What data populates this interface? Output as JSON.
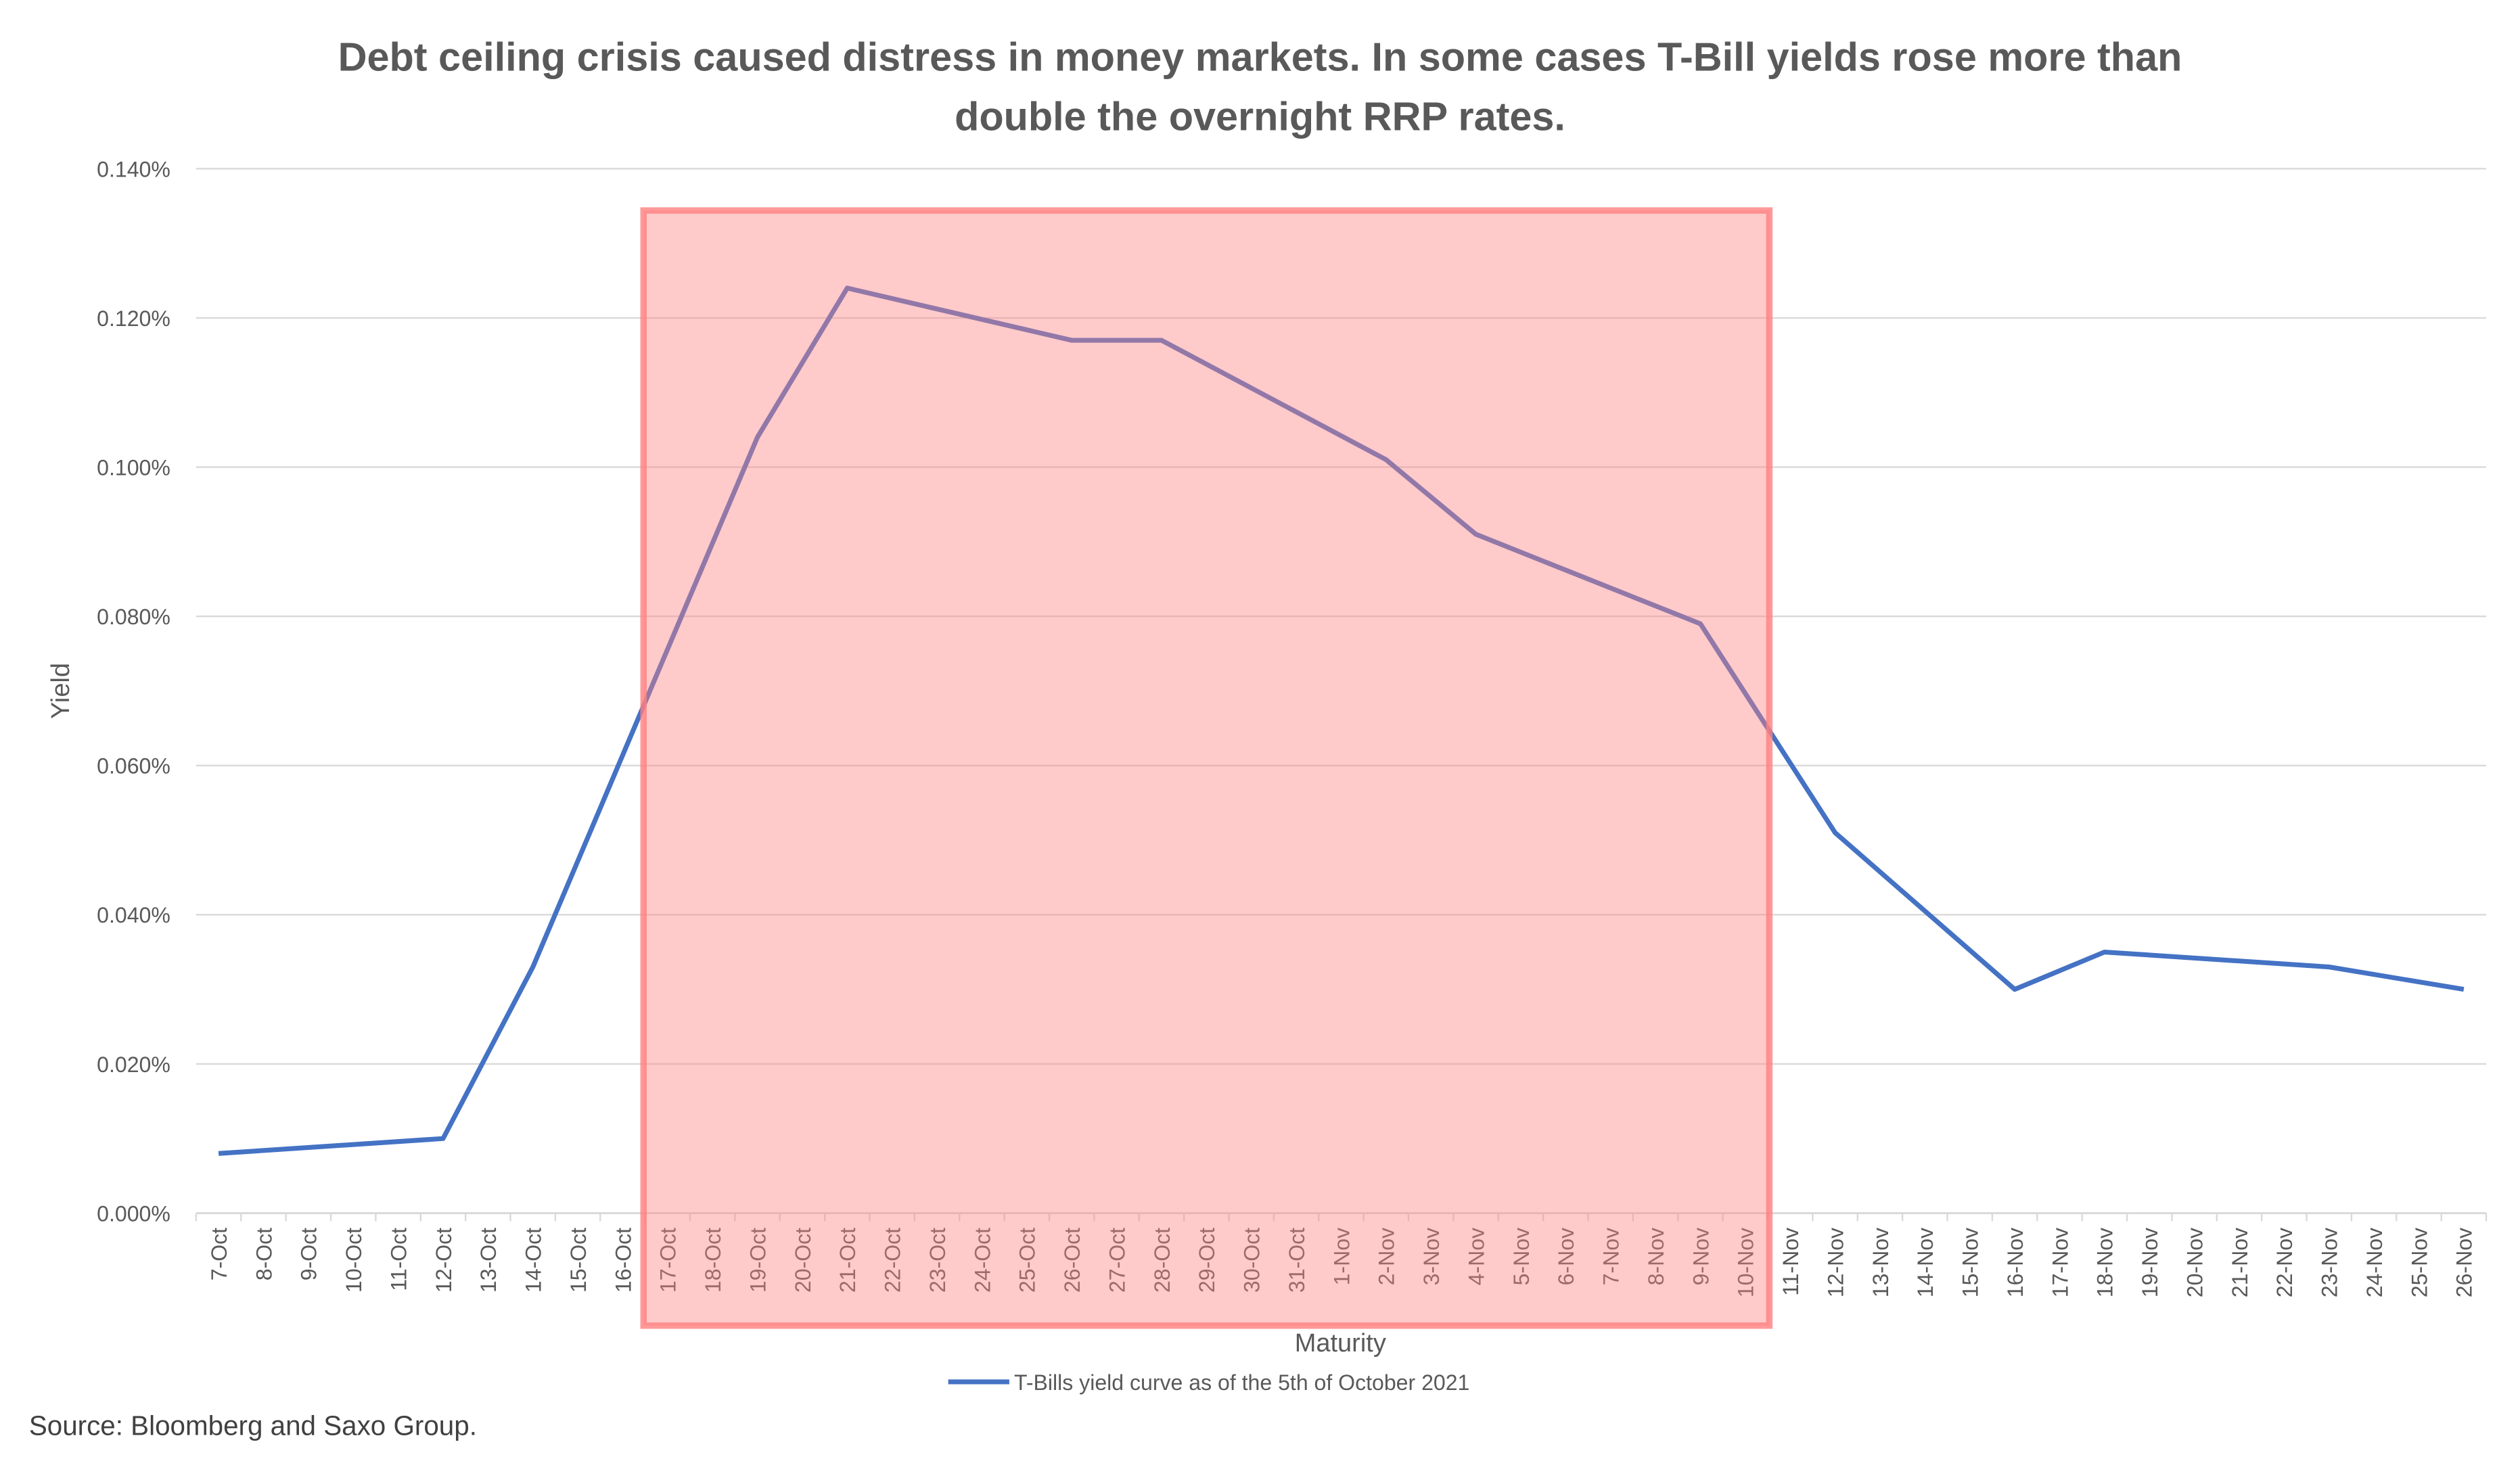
{
  "chart_data": {
    "type": "line",
    "title_lines": [
      "Debt ceiling crisis caused distress in money markets. In some cases T-Bill yields rose more than",
      "double the overnight RRP rates."
    ],
    "xlabel": "Maturity",
    "ylabel": "Yield",
    "ylim": [
      0,
      0.14
    ],
    "y_unit": "%",
    "yticks": [
      "0.000%",
      "0.020%",
      "0.040%",
      "0.060%",
      "0.080%",
      "0.100%",
      "0.120%",
      "0.140%"
    ],
    "ytick_values": [
      0,
      0.02,
      0.04,
      0.06,
      0.08,
      0.1,
      0.12,
      0.14
    ],
    "grid": true,
    "legend_position": "bottom",
    "categories": [
      "7-Oct",
      "8-Oct",
      "9-Oct",
      "10-Oct",
      "11-Oct",
      "12-Oct",
      "13-Oct",
      "14-Oct",
      "15-Oct",
      "16-Oct",
      "17-Oct",
      "18-Oct",
      "19-Oct",
      "20-Oct",
      "21-Oct",
      "22-Oct",
      "23-Oct",
      "24-Oct",
      "25-Oct",
      "26-Oct",
      "27-Oct",
      "28-Oct",
      "29-Oct",
      "30-Oct",
      "31-Oct",
      "1-Nov",
      "2-Nov",
      "3-Nov",
      "4-Nov",
      "5-Nov",
      "6-Nov",
      "7-Nov",
      "8-Nov",
      "9-Nov",
      "10-Nov",
      "11-Nov",
      "12-Nov",
      "13-Nov",
      "14-Nov",
      "15-Nov",
      "16-Nov",
      "17-Nov",
      "18-Nov",
      "19-Nov",
      "20-Nov",
      "21-Nov",
      "22-Nov",
      "23-Nov",
      "24-Nov",
      "25-Nov",
      "26-Nov"
    ],
    "series": [
      {
        "name": "T-Bills yield curve as of  the 5th of October 2021",
        "color": "#4472C4",
        "points": [
          {
            "x": "7-Oct",
            "y": 0.008
          },
          {
            "x": "12-Oct",
            "y": 0.01
          },
          {
            "x": "14-Oct",
            "y": 0.033
          },
          {
            "x": "19-Oct",
            "y": 0.104
          },
          {
            "x": "21-Oct",
            "y": 0.124
          },
          {
            "x": "26-Oct",
            "y": 0.117
          },
          {
            "x": "28-Oct",
            "y": 0.117
          },
          {
            "x": "2-Nov",
            "y": 0.101
          },
          {
            "x": "4-Nov",
            "y": 0.091
          },
          {
            "x": "9-Nov",
            "y": 0.079
          },
          {
            "x": "12-Nov",
            "y": 0.051
          },
          {
            "x": "16-Nov",
            "y": 0.03
          },
          {
            "x": "18-Nov",
            "y": 0.035
          },
          {
            "x": "23-Nov",
            "y": 0.033
          },
          {
            "x": "26-Nov",
            "y": 0.03
          }
        ]
      }
    ],
    "highlight": {
      "from": "17-Oct",
      "to": "10-Nov",
      "color": "#FF8080"
    },
    "source": "Source: Bloomberg and Saxo Group."
  }
}
